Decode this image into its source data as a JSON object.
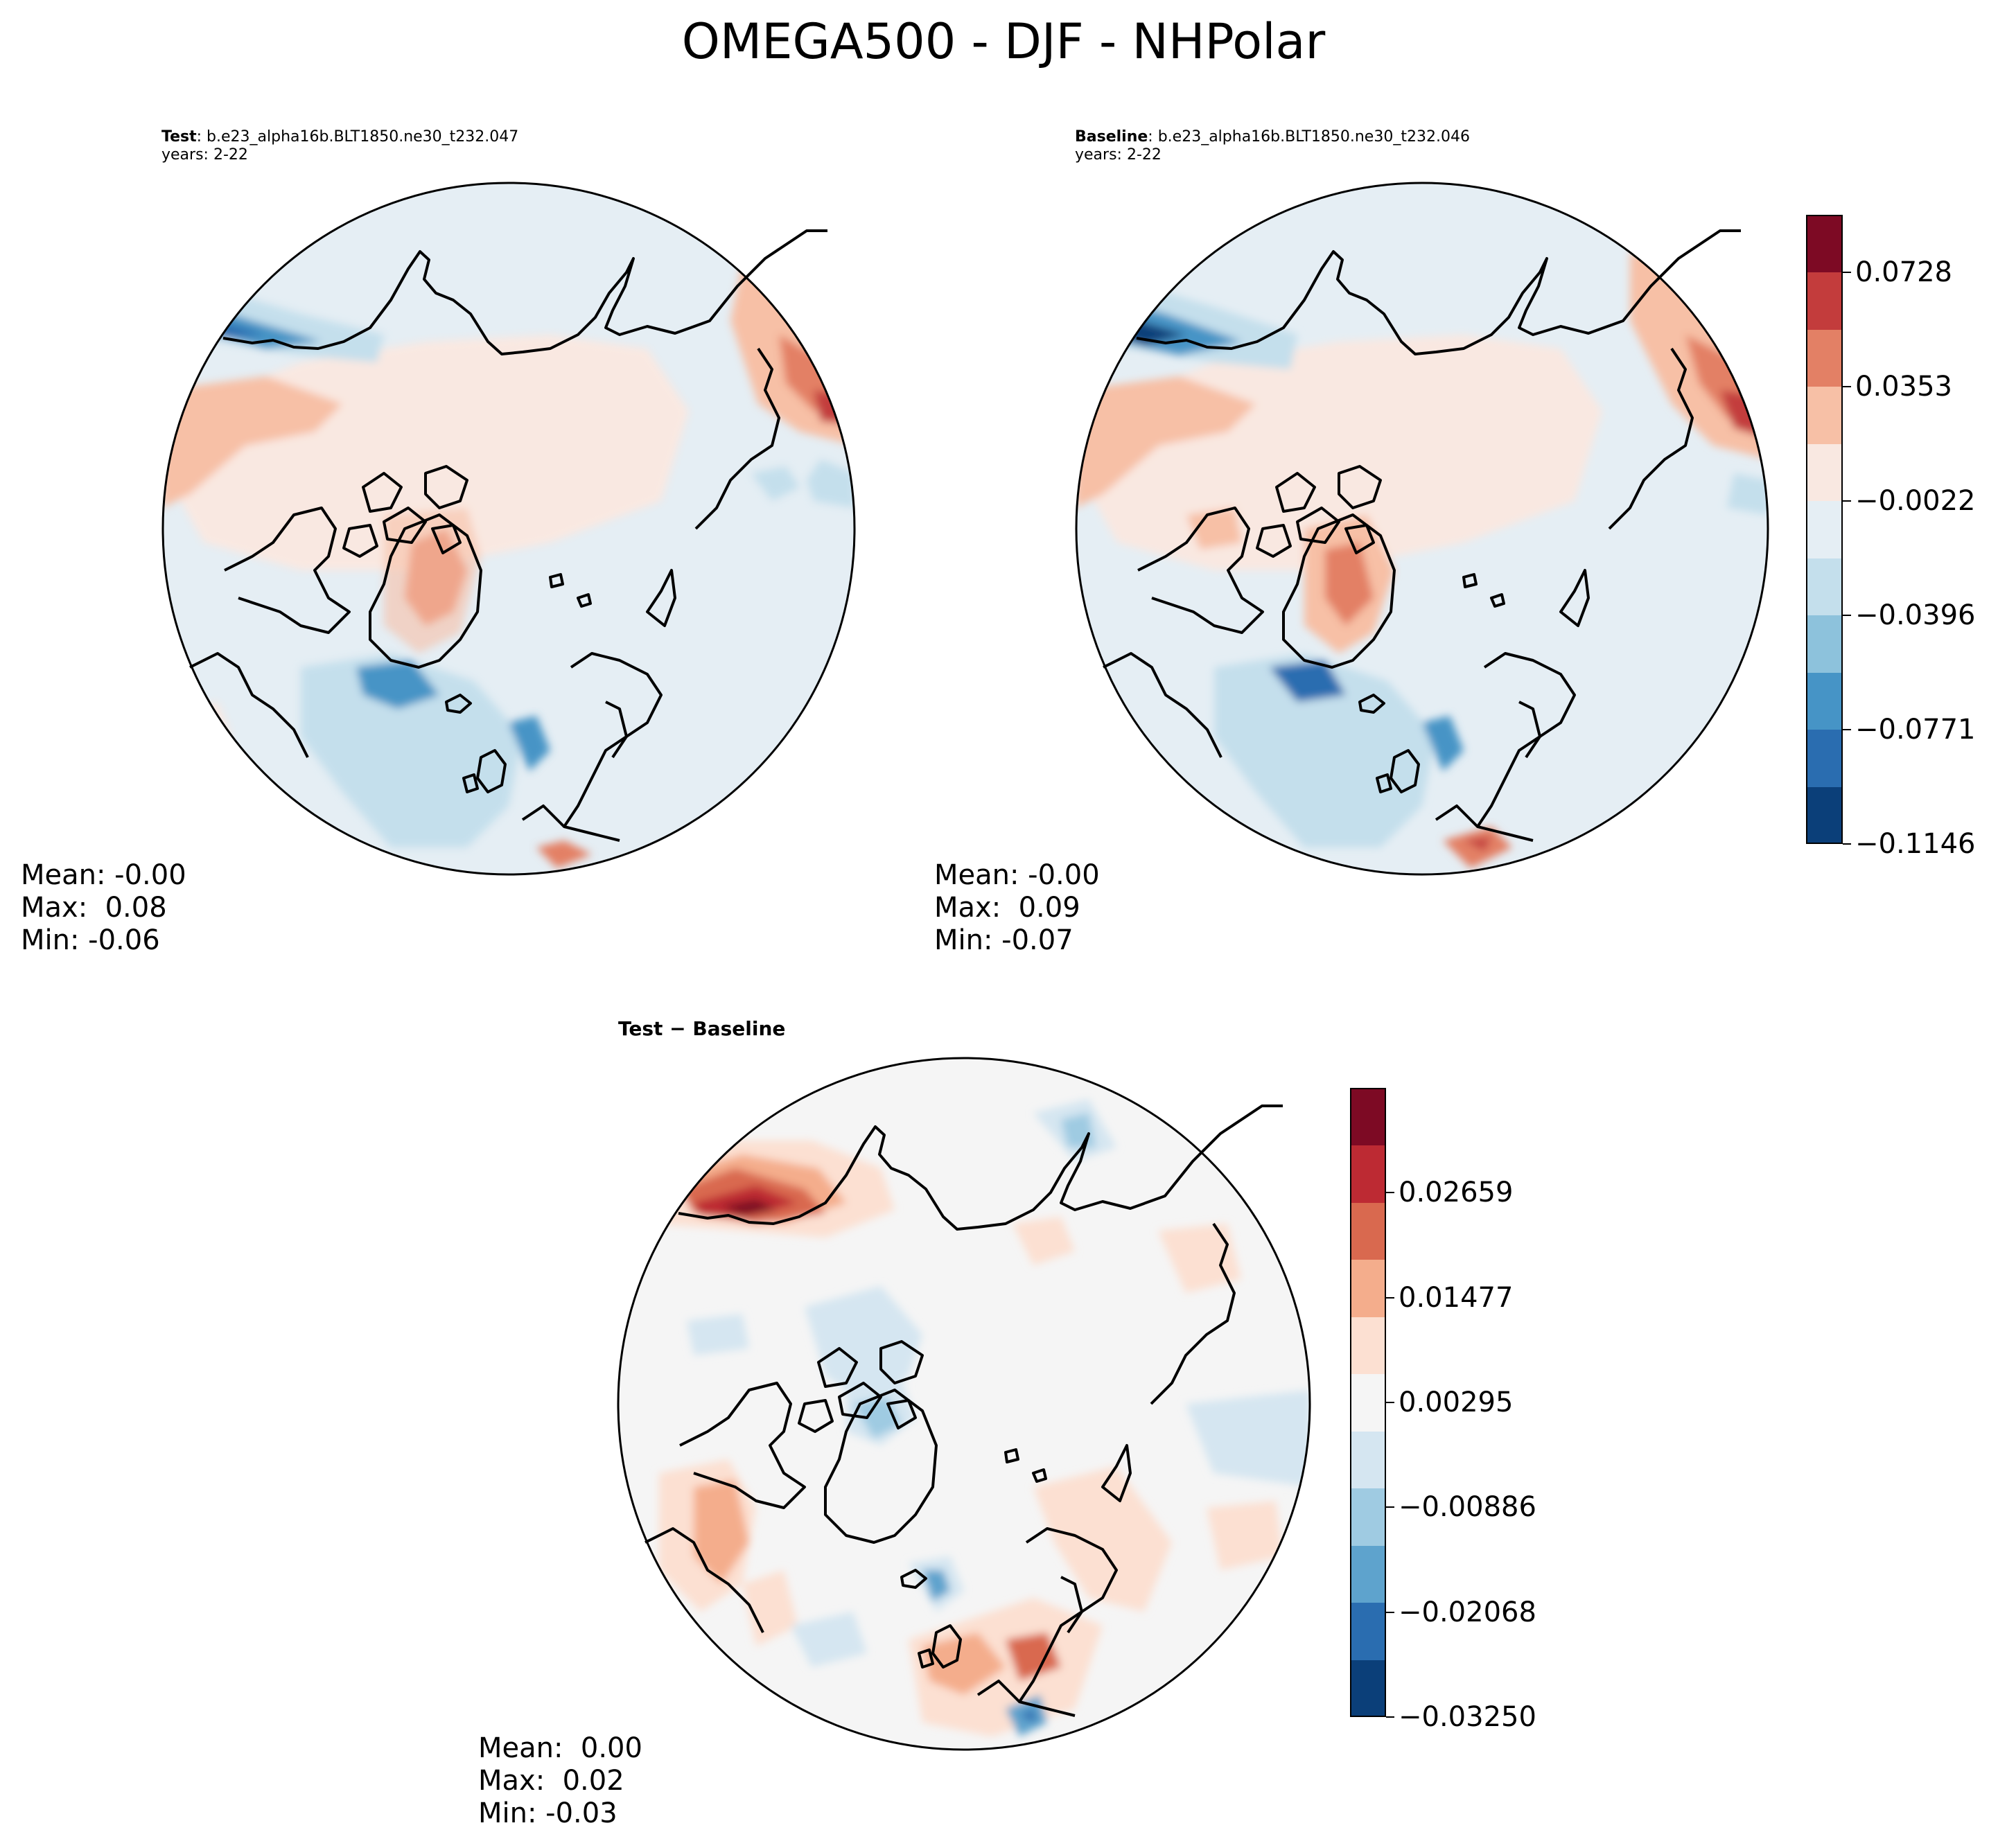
{
  "title": "OMEGA500 - DJF - NHPolar",
  "colors": {
    "main": [
      "#0b3f79",
      "#2a6db0",
      "#4694c6",
      "#8dc2dc",
      "#c4dfec",
      "#e5eef4",
      "#f9e8e1",
      "#f7c0a6",
      "#e38065",
      "#c33c3c",
      "#7d0a24"
    ],
    "diff": [
      "#0b3f79",
      "#2a6db0",
      "#5ea3cd",
      "#9fcbe2",
      "#d5e6f1",
      "#f5f5f5",
      "#fce0d2",
      "#f4ad8c",
      "#d9694f",
      "#bd2a33",
      "#7d0a24"
    ]
  },
  "panels": {
    "test": {
      "label_bold": "Test",
      "label_rest": ": b.e23_alpha16b.BLT1850.ne30_t232.047",
      "years": "years: 2-22",
      "mean": "Mean: -0.00",
      "max": "Max:  0.08",
      "min": "Min: -0.06"
    },
    "baseline": {
      "label_bold": "Baseline",
      "label_rest": ": b.e23_alpha16b.BLT1850.ne30_t232.046",
      "years": "years: 2-22",
      "mean": "Mean: -0.00",
      "max": "Max:  0.09",
      "min": "Min: -0.07"
    },
    "diff": {
      "label": "Test − Baseline",
      "mean": "Mean:  0.00",
      "max": "Max:  0.02",
      "min": "Min: -0.03"
    }
  },
  "colorbars": {
    "main": {
      "ticks": [
        "0.0728",
        "0.0353",
        "−0.0022",
        "−0.0396",
        "−0.0771",
        "−0.1146"
      ],
      "tick_values": [
        0.0728,
        0.0353,
        -0.0022,
        -0.0396,
        -0.0771,
        -0.1146
      ],
      "range": [
        -0.1146,
        0.0916
      ]
    },
    "diff": {
      "ticks": [
        "0.02659",
        "0.01477",
        "0.00295",
        "−0.00886",
        "−0.02068",
        "−0.03250"
      ],
      "tick_values": [
        0.02659,
        0.01477,
        0.00295,
        -0.00886,
        -0.02068,
        -0.0325
      ],
      "range": [
        -0.0325,
        0.03841
      ]
    }
  }
}
